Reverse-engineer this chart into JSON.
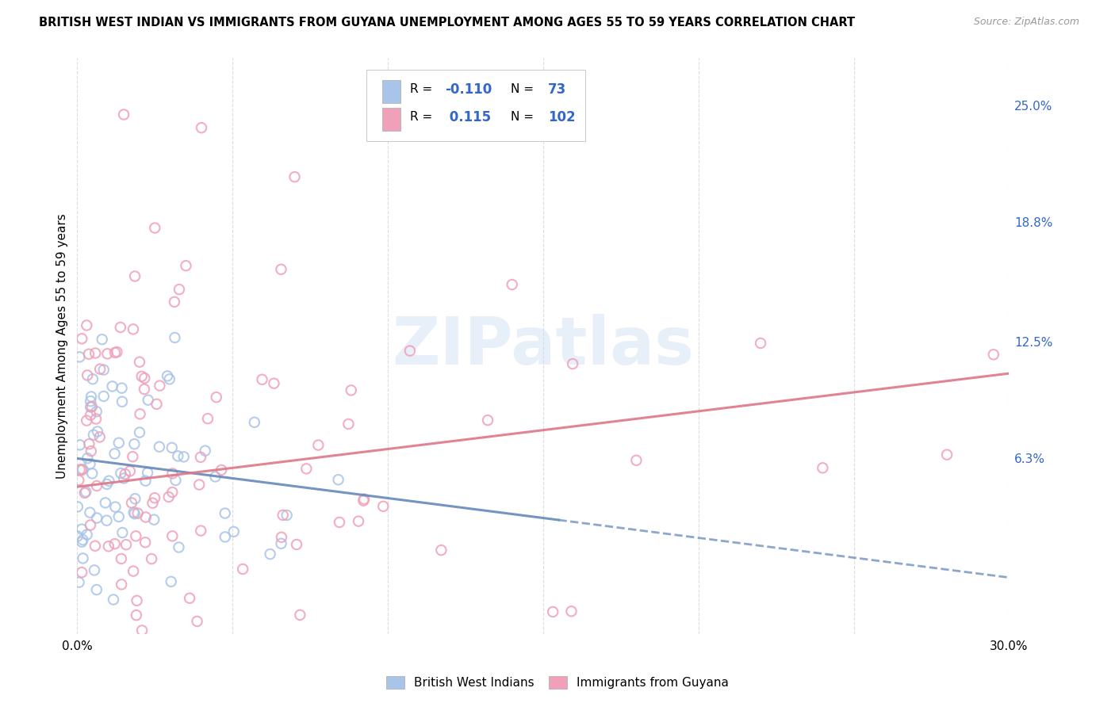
{
  "title": "BRITISH WEST INDIAN VS IMMIGRANTS FROM GUYANA UNEMPLOYMENT AMONG AGES 55 TO 59 YEARS CORRELATION CHART",
  "source": "Source: ZipAtlas.com",
  "ylabel": "Unemployment Among Ages 55 to 59 years",
  "xlim": [
    0.0,
    0.3
  ],
  "ylim": [
    -0.03,
    0.275
  ],
  "xticks": [
    0.0,
    0.05,
    0.1,
    0.15,
    0.2,
    0.25,
    0.3
  ],
  "xticklabels": [
    "0.0%",
    "",
    "",
    "",
    "",
    "",
    "30.0%"
  ],
  "ytick_positions": [
    0.063,
    0.125,
    0.188,
    0.25
  ],
  "ytick_labels": [
    "6.3%",
    "12.5%",
    "18.8%",
    "25.0%"
  ],
  "legend_labels": [
    "British West Indians",
    "Immigrants from Guyana"
  ],
  "series1_color": "#a8c4e8",
  "series2_color": "#f0a0b8",
  "trend1_color": "#6688bb",
  "trend2_color": "#dd7788",
  "trend1_slope": -0.21,
  "trend1_intercept": 0.063,
  "trend2_slope": 0.2,
  "trend2_intercept": 0.048,
  "R1": -0.11,
  "N1": 73,
  "R2": 0.115,
  "N2": 102,
  "watermark": "ZIPatlas",
  "background_color": "#ffffff",
  "grid_color": "#dddddd",
  "accent_color": "#3366cc"
}
